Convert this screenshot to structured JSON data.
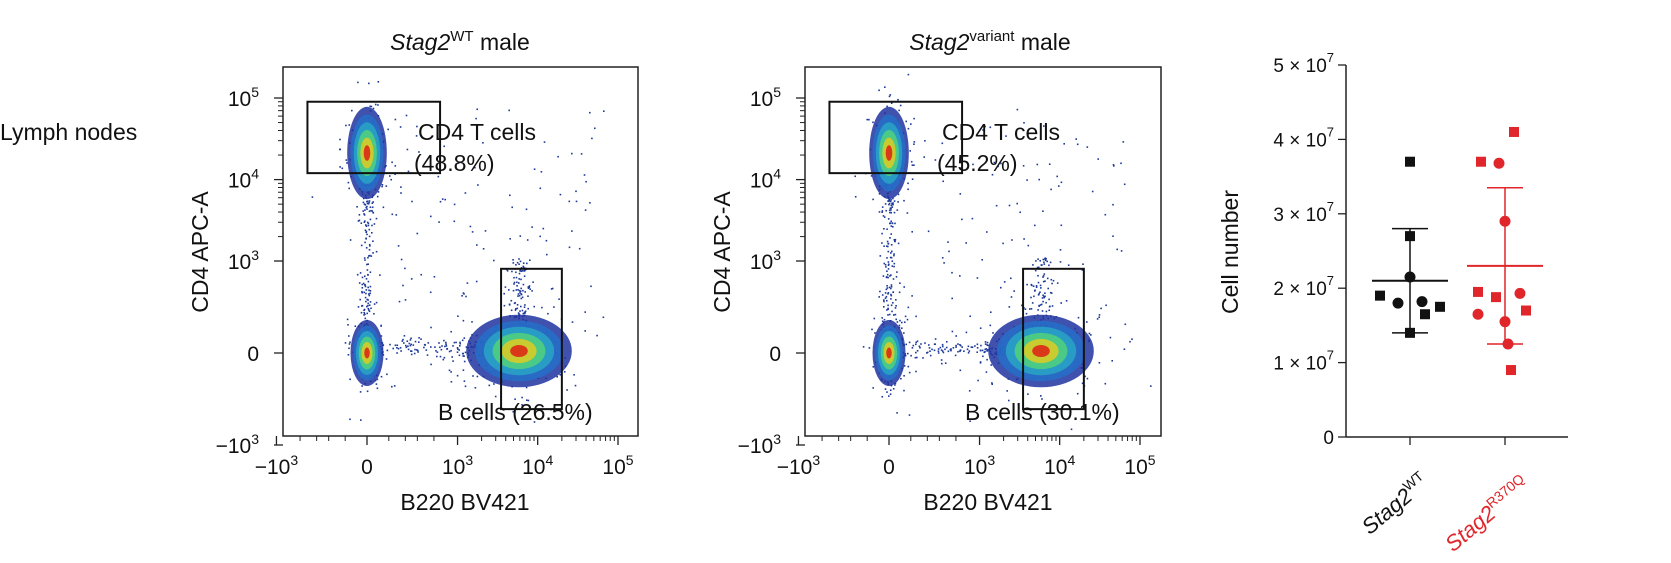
{
  "figure": {
    "row_label": "Lymph nodes"
  },
  "chart_data": [
    {
      "type": "scatter",
      "subtype": "flow-cytometry-density",
      "title": {
        "gene": "Stag2",
        "superscript": "WT",
        "suffix": " male"
      },
      "xlabel": "B220 BV421",
      "ylabel": "CD4 APC-A",
      "x_ticks": [
        {
          "base": "−10",
          "exp": "3",
          "value": -1000
        },
        {
          "base": "0",
          "exp": "",
          "value": 0
        },
        {
          "base": "10",
          "exp": "3",
          "value": 1000
        },
        {
          "base": "10",
          "exp": "4",
          "value": 10000
        },
        {
          "base": "10",
          "exp": "5",
          "value": 100000
        }
      ],
      "y_ticks": [
        {
          "base": "10",
          "exp": "5",
          "value": 100000
        },
        {
          "base": "10",
          "exp": "4",
          "value": 10000
        },
        {
          "base": "10",
          "exp": "3",
          "value": 1000
        },
        {
          "base": "0",
          "exp": "",
          "value": 0
        },
        {
          "base": "−10",
          "exp": "3",
          "value": -1000
        }
      ],
      "gates": [
        {
          "name": "CD4 T cells",
          "percent": "(48.8%)",
          "label": "CD4 T cells",
          "x_range": [
            -400,
            600
          ],
          "y_range": [
            12000,
            90000
          ]
        },
        {
          "name": "B cells",
          "percent": "",
          "label": "B cells (26.5%)",
          "x_range": [
            3500,
            20000
          ],
          "y_range": [
            -350,
            800
          ]
        }
      ],
      "populations": [
        {
          "name": "CD4 T",
          "x": 0,
          "y": 28000
        },
        {
          "name": "double negative",
          "x": 0,
          "y": 0
        },
        {
          "name": "B cells",
          "x": 8000,
          "y": 0
        }
      ]
    },
    {
      "type": "scatter",
      "subtype": "flow-cytometry-density",
      "title": {
        "gene": "Stag2",
        "superscript": "variant",
        "suffix": " male"
      },
      "xlabel": "B220 BV421",
      "ylabel": "CD4 APC-A",
      "x_ticks": [
        {
          "base": "−10",
          "exp": "3",
          "value": -1000
        },
        {
          "base": "0",
          "exp": "",
          "value": 0
        },
        {
          "base": "10",
          "exp": "3",
          "value": 1000
        },
        {
          "base": "10",
          "exp": "4",
          "value": 10000
        },
        {
          "base": "10",
          "exp": "5",
          "value": 100000
        }
      ],
      "y_ticks": [
        {
          "base": "10",
          "exp": "5",
          "value": 100000
        },
        {
          "base": "10",
          "exp": "4",
          "value": 10000
        },
        {
          "base": "10",
          "exp": "3",
          "value": 1000
        },
        {
          "base": "0",
          "exp": "",
          "value": 0
        },
        {
          "base": "−10",
          "exp": "3",
          "value": -1000
        }
      ],
      "gates": [
        {
          "name": "CD4 T cells",
          "percent": "(45.2%)",
          "label": "CD4 T cells",
          "x_range": [
            -400,
            600
          ],
          "y_range": [
            12000,
            90000
          ]
        },
        {
          "name": "B cells",
          "percent": "",
          "label": "B cells (30.1%)",
          "x_range": [
            3500,
            20000
          ],
          "y_range": [
            -350,
            800
          ]
        }
      ],
      "populations": [
        {
          "name": "CD4 T",
          "x": 0,
          "y": 28000
        },
        {
          "name": "double negative",
          "x": 0,
          "y": 0
        },
        {
          "name": "B cells",
          "x": 8000,
          "y": 0
        }
      ]
    },
    {
      "type": "scatter",
      "subtype": "dot-plot-mean-sd",
      "ylabel": "Cell number",
      "ylim": [
        0,
        50000000
      ],
      "y_ticks": [
        {
          "mant": "0",
          "exp": "",
          "value": 0
        },
        {
          "mant": "1 × 10",
          "exp": "7",
          "value": 10000000
        },
        {
          "mant": "2 × 10",
          "exp": "7",
          "value": 20000000
        },
        {
          "mant": "3 × 10",
          "exp": "7",
          "value": 30000000
        },
        {
          "mant": "4 × 10",
          "exp": "7",
          "value": 40000000
        },
        {
          "mant": "5 × 10",
          "exp": "7",
          "value": 50000000
        }
      ],
      "groups": [
        {
          "name": "Stag2 WT",
          "label_gene": "Stag2",
          "label_sup": "WT",
          "color": "#111111",
          "mean": 21000000,
          "sd_low": 14000000,
          "sd_high": 28000000,
          "points": [
            {
              "offset": 0.0,
              "value": 37000000,
              "shape": "square"
            },
            {
              "offset": 0.0,
              "value": 27000000,
              "shape": "square"
            },
            {
              "offset": 0.0,
              "value": 21500000,
              "shape": "circle"
            },
            {
              "offset": -1.0,
              "value": 19000000,
              "shape": "square"
            },
            {
              "offset": -0.4,
              "value": 18000000,
              "shape": "circle"
            },
            {
              "offset": 0.4,
              "value": 18200000,
              "shape": "circle"
            },
            {
              "offset": 1.0,
              "value": 17500000,
              "shape": "square"
            },
            {
              "offset": 0.5,
              "value": 16500000,
              "shape": "square"
            },
            {
              "offset": 0.0,
              "value": 14000000,
              "shape": "square"
            }
          ]
        },
        {
          "name": "Stag2 R370Q",
          "label_gene": "Stag2",
          "label_sup": "R370Q",
          "color": "#e0262b",
          "mean": 23000000,
          "sd_low": 12500000,
          "sd_high": 33500000,
          "points": [
            {
              "offset": 0.3,
              "value": 41000000,
              "shape": "square"
            },
            {
              "offset": -0.8,
              "value": 37000000,
              "shape": "square"
            },
            {
              "offset": -0.2,
              "value": 36800000,
              "shape": "circle"
            },
            {
              "offset": 0.0,
              "value": 29000000,
              "shape": "circle"
            },
            {
              "offset": -0.9,
              "value": 19500000,
              "shape": "square"
            },
            {
              "offset": -0.3,
              "value": 18800000,
              "shape": "square"
            },
            {
              "offset": 0.5,
              "value": 19300000,
              "shape": "circle"
            },
            {
              "offset": 0.7,
              "value": 17000000,
              "shape": "square"
            },
            {
              "offset": -0.9,
              "value": 16500000,
              "shape": "circle"
            },
            {
              "offset": 0.0,
              "value": 15500000,
              "shape": "circle"
            },
            {
              "offset": 0.1,
              "value": 12500000,
              "shape": "circle"
            },
            {
              "offset": 0.2,
              "value": 9000000,
              "shape": "square"
            }
          ]
        }
      ]
    }
  ]
}
